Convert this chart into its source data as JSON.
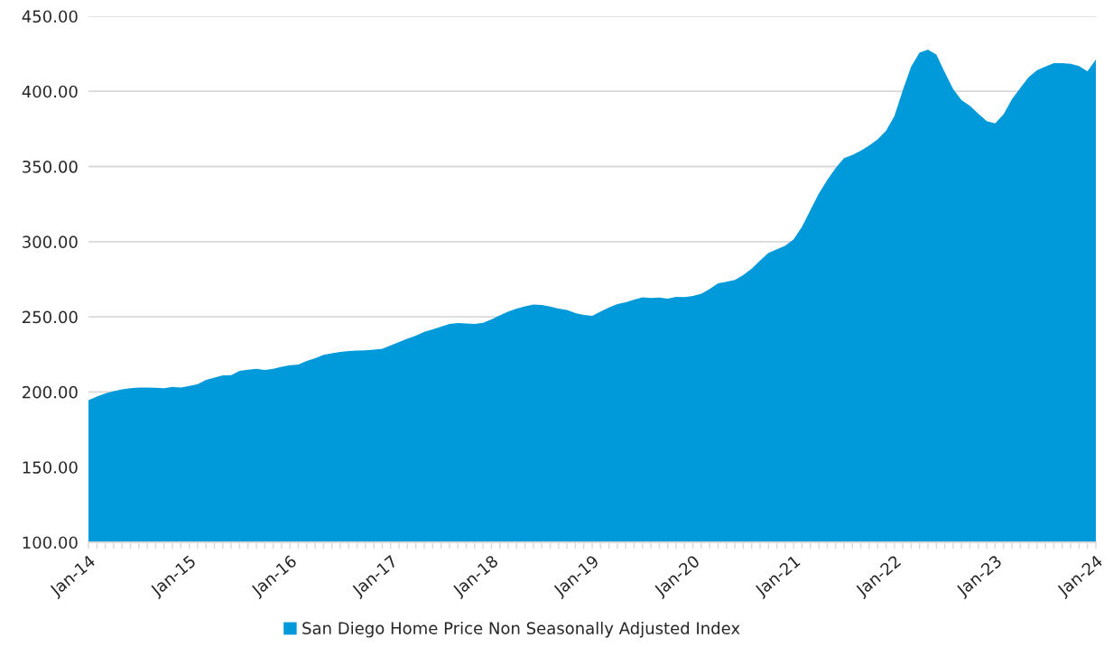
{
  "chart_data": {
    "type": "area",
    "categories": [
      "Jan-14",
      null,
      null,
      null,
      null,
      null,
      null,
      null,
      null,
      null,
      null,
      null,
      "Jan-15",
      null,
      null,
      null,
      null,
      null,
      null,
      null,
      null,
      null,
      null,
      null,
      "Jan-16",
      null,
      null,
      null,
      null,
      null,
      null,
      null,
      null,
      null,
      null,
      null,
      "Jan-17",
      null,
      null,
      null,
      null,
      null,
      null,
      null,
      null,
      null,
      null,
      null,
      "Jan-18",
      null,
      null,
      null,
      null,
      null,
      null,
      null,
      null,
      null,
      null,
      null,
      "Jan-19",
      null,
      null,
      null,
      null,
      null,
      null,
      null,
      null,
      null,
      null,
      null,
      "Jan-20",
      null,
      null,
      null,
      null,
      null,
      null,
      null,
      null,
      null,
      null,
      null,
      "Jan-21",
      null,
      null,
      null,
      null,
      null,
      null,
      null,
      null,
      null,
      null,
      null,
      "Jan-22",
      null,
      null,
      null,
      null,
      null,
      null,
      null,
      null,
      null,
      null,
      null,
      "Jan-23",
      null,
      null,
      null,
      null,
      null,
      null,
      null,
      null,
      null,
      null,
      null,
      "Jan-24"
    ],
    "series": [
      {
        "name": "San Diego Home Price Non Seasonally Adjusted Index",
        "color": "#0099da",
        "values": [
          194.6,
          197.0,
          199.0,
          200.5,
          201.7,
          202.5,
          203.0,
          203.0,
          202.8,
          202.5,
          203.4,
          203.0,
          204.0,
          205.2,
          208.0,
          209.5,
          211.0,
          211.2,
          214.0,
          214.8,
          215.4,
          214.6,
          215.4,
          216.8,
          217.8,
          218.3,
          220.7,
          222.5,
          224.7,
          225.7,
          226.7,
          227.2,
          227.5,
          227.7,
          228.2,
          228.7,
          231.0,
          233.3,
          235.5,
          237.5,
          240.0,
          241.7,
          243.5,
          245.3,
          245.9,
          245.6,
          245.3,
          246.0,
          248.3,
          251.0,
          253.5,
          255.5,
          257.0,
          258.1,
          257.9,
          256.8,
          255.5,
          254.5,
          252.5,
          251.2,
          250.7,
          253.5,
          256.2,
          258.5,
          259.6,
          261.5,
          263.0,
          262.5,
          262.8,
          262.0,
          263.3,
          263.1,
          263.8,
          265.3,
          268.5,
          272.3,
          273.3,
          274.5,
          277.8,
          282.0,
          287.5,
          292.5,
          295.0,
          297.3,
          301.5,
          310.0,
          321.0,
          332.0,
          341.0,
          349.0,
          355.5,
          357.7,
          360.5,
          364.0,
          368.0,
          373.7,
          383.5,
          400.8,
          416.5,
          425.8,
          427.8,
          424.4,
          412.8,
          401.5,
          394.2,
          390.4,
          385.2,
          380.1,
          378.7,
          384.7,
          394.8,
          402.3,
          409.5,
          414.1,
          416.5,
          418.7,
          418.8,
          418.3,
          416.8,
          413.4,
          421.2
        ]
      }
    ],
    "ylim": [
      100,
      450
    ],
    "yticks": [
      {
        "value": 100,
        "label": "100.00"
      },
      {
        "value": 150,
        "label": "150.00"
      },
      {
        "value": 200,
        "label": "200.00"
      },
      {
        "value": 250,
        "label": "250.00"
      },
      {
        "value": 300,
        "label": "300.00"
      },
      {
        "value": 350,
        "label": "350.00"
      },
      {
        "value": 400,
        "label": "400.00"
      },
      {
        "value": 450,
        "label": "450.00"
      }
    ],
    "grid": "y",
    "legend": "bottom"
  }
}
